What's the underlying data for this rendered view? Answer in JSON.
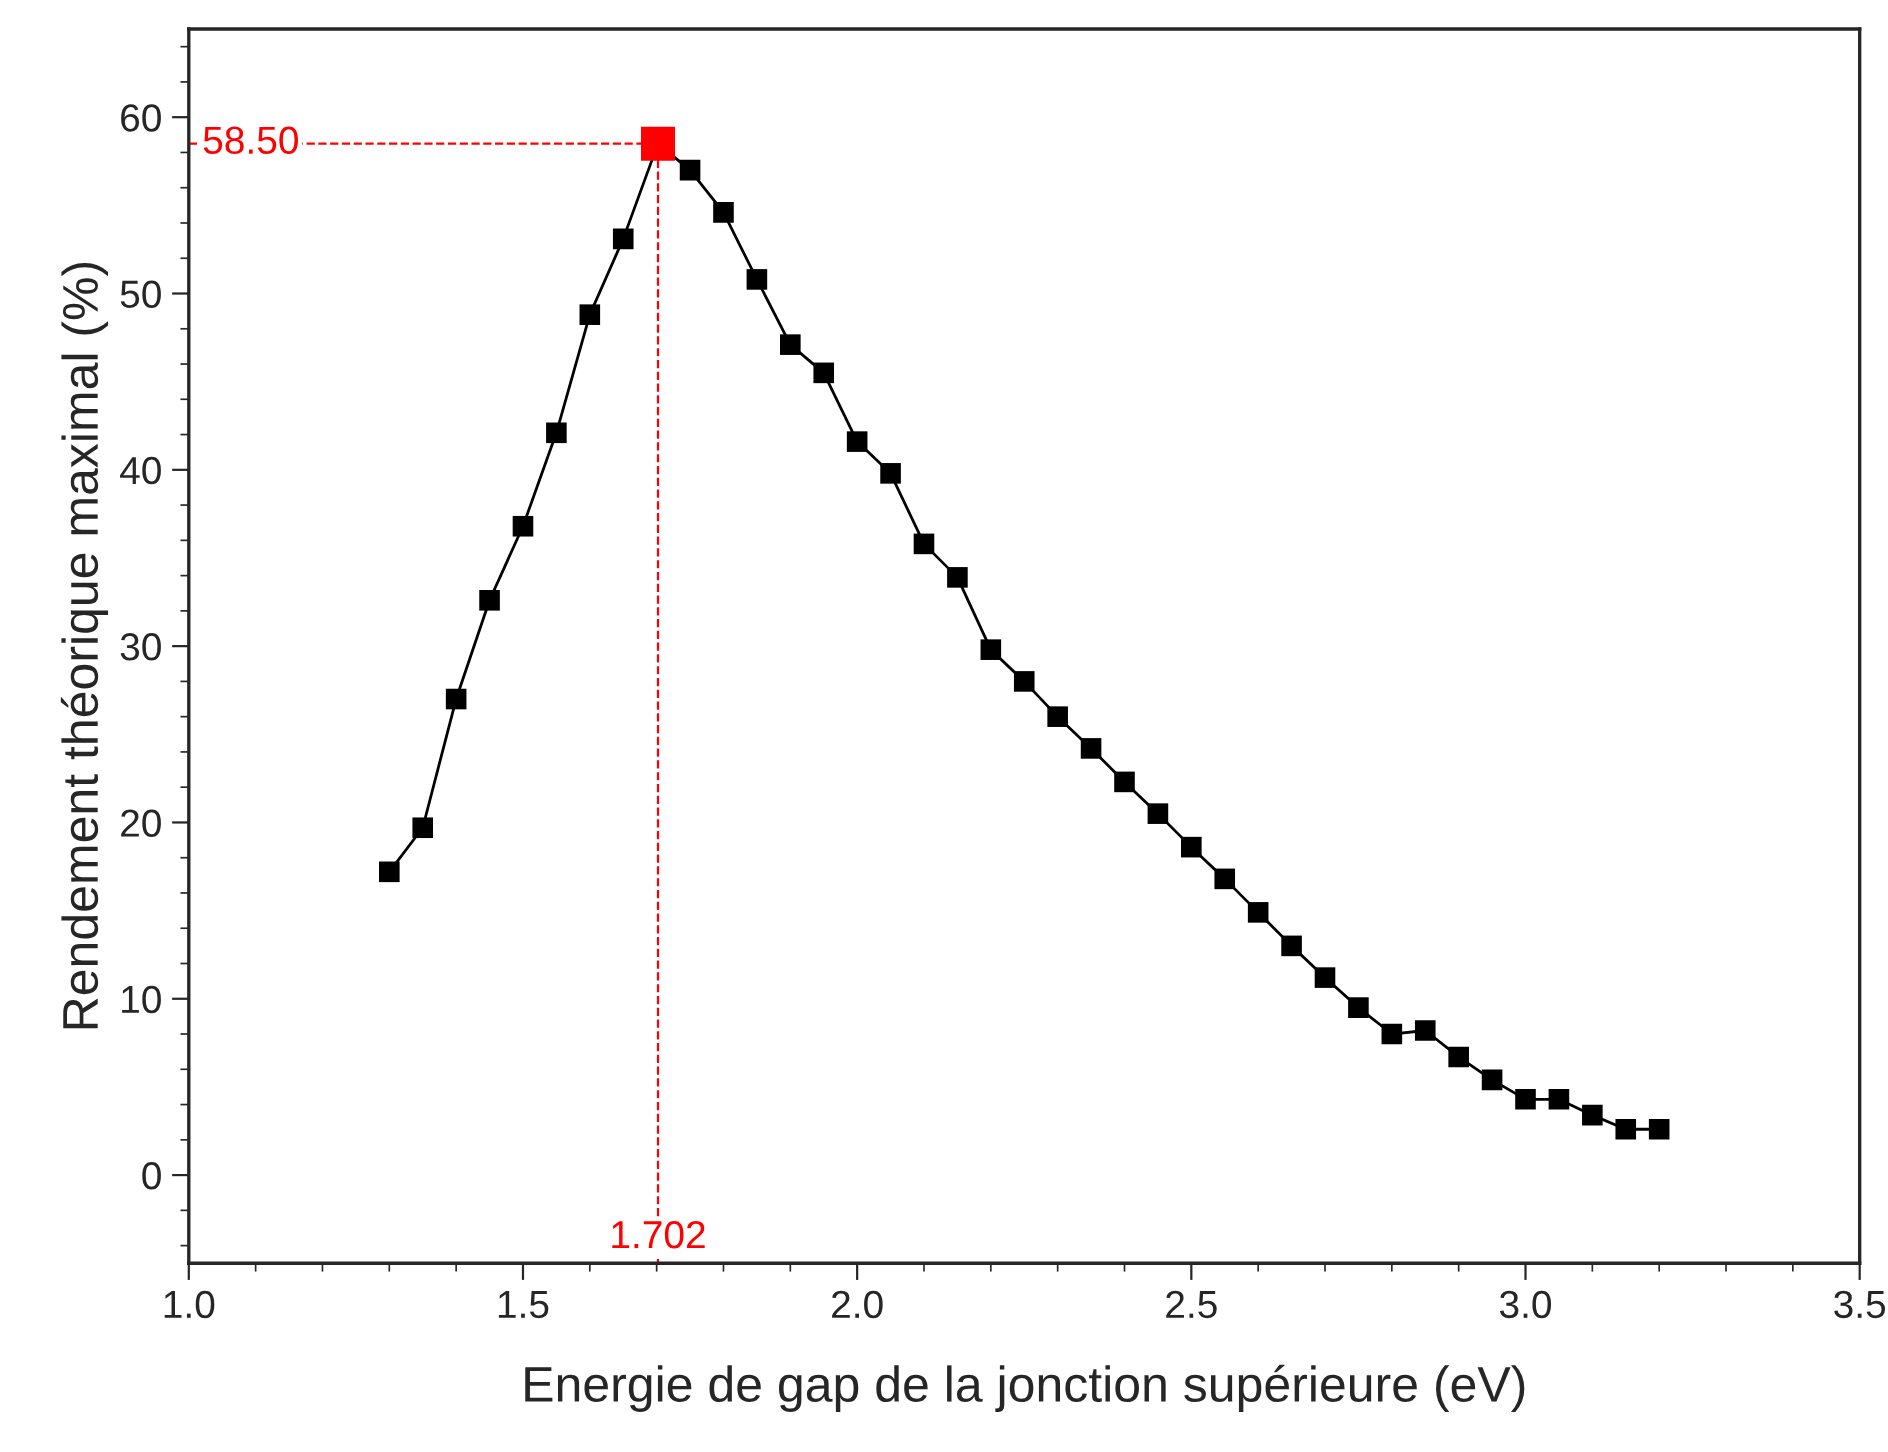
{
  "chart_data": {
    "type": "line",
    "xlabel": "Energie de gap de la jonction supérieure (eV)",
    "ylabel": "Rendement théorique maximal (%)",
    "xlim": [
      1.0,
      3.5
    ],
    "xticks": [
      {
        "value": 1,
        "label": "1.0"
      },
      1.5,
      {
        "value": 2,
        "label": "2.0"
      },
      2.5,
      {
        "value": 3,
        "label": "3.0"
      },
      3.5
    ],
    "ylim": [
      -5,
      65
    ],
    "yticks": [
      0,
      10,
      20,
      30,
      40,
      50,
      60
    ],
    "grid": false,
    "marker": "square",
    "line_style": "solid",
    "series": [
      {
        "color": "#000000",
        "x": [
          1.3,
          1.35,
          1.4,
          1.45,
          1.5,
          1.55,
          1.6,
          1.65,
          1.702,
          1.75,
          1.8,
          1.85,
          1.9,
          1.95,
          2.0,
          2.05,
          2.1,
          2.15,
          2.2,
          2.25,
          2.3,
          2.35,
          2.4,
          2.45,
          2.5,
          2.55,
          2.6,
          2.65,
          2.7,
          2.75,
          2.8,
          2.85,
          2.9,
          2.95,
          3.0,
          3.05,
          3.1,
          3.15,
          3.2
        ],
        "values": [
          17.2,
          19.7,
          27.0,
          32.6,
          36.8,
          42.1,
          48.8,
          53.1,
          58.5,
          57.0,
          54.6,
          50.8,
          47.1,
          45.5,
          41.6,
          39.8,
          35.8,
          33.9,
          29.8,
          28.0,
          26.0,
          24.2,
          22.3,
          20.5,
          18.6,
          16.8,
          14.9,
          13.0,
          11.2,
          9.5,
          8.0,
          8.2,
          6.7,
          5.4,
          4.3,
          4.3,
          3.4,
          2.6,
          2.6
        ],
        "colors": [
          "#000000",
          "#000000",
          "#000000",
          "#000000",
          "#000000",
          "#000000",
          "#000000",
          "#000000",
          "#ff0000",
          "#000000",
          "#000000",
          "#000000",
          "#000000",
          "#000000",
          "#000000",
          "#000000",
          "#000000",
          "#000000",
          "#000000",
          "#000000",
          "#000000",
          "#000000",
          "#000000",
          "#000000",
          "#000000",
          "#000000",
          "#000000",
          "#000000",
          "#000000",
          "#000000",
          "#000000",
          "#000000",
          "#000000",
          "#000000",
          "#000000",
          "#000000",
          "#000000",
          "#000000",
          "#000000"
        ]
      }
    ],
    "ref_lines": [
      {
        "axis": "y",
        "value": 58.5,
        "label": "58.50",
        "color": "#ff0000",
        "line_style": "dashed"
      },
      {
        "axis": "x",
        "value": 1.702,
        "label": "1.702",
        "color": "#ff0000",
        "line_style": "dashed"
      }
    ]
  }
}
